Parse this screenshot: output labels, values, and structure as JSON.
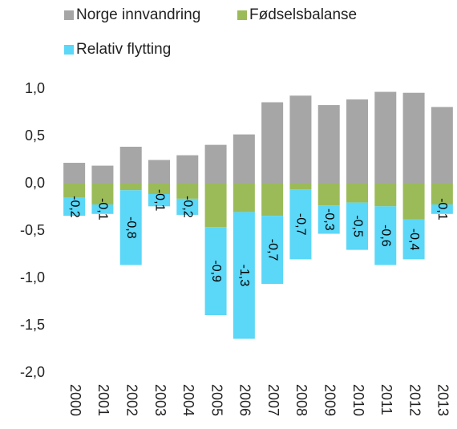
{
  "chart_data": {
    "type": "bar",
    "stacked": true,
    "categories": [
      "2000",
      "2001",
      "2002",
      "2003",
      "2004",
      "2005",
      "2006",
      "2007",
      "2008",
      "2009",
      "2010",
      "2011",
      "2012",
      "2013"
    ],
    "series": [
      {
        "name": "Norge innvandring",
        "color": "#a6a6a6",
        "values": [
          0.22,
          0.19,
          0.39,
          0.25,
          0.3,
          0.41,
          0.52,
          0.86,
          0.93,
          0.83,
          0.89,
          0.97,
          0.96,
          0.81
        ]
      },
      {
        "name": "Fødselsbalanse",
        "color": "#9bbb59",
        "values": [
          -0.15,
          -0.22,
          -0.07,
          -0.11,
          -0.16,
          -0.46,
          -0.3,
          -0.34,
          -0.06,
          -0.23,
          -0.2,
          -0.24,
          -0.38,
          -0.22
        ]
      },
      {
        "name": "Relativ flytting",
        "color": "#5bd7f7",
        "values": [
          -0.19,
          -0.1,
          -0.79,
          -0.13,
          -0.17,
          -0.93,
          -1.34,
          -0.72,
          -0.74,
          -0.3,
          -0.5,
          -0.62,
          -0.42,
          -0.1
        ],
        "value_labels": [
          "-0,2",
          "-0,1",
          "-0,8",
          "-0,1",
          "-0,2",
          "-0,9",
          "-1,3",
          "-0,7",
          "-0,7",
          "-0,3",
          "-0,5",
          "-0,6",
          "-0,4",
          "-0,1"
        ]
      }
    ],
    "ylim": [
      -2.0,
      1.0
    ],
    "yticks": [
      {
        "value": -2.0,
        "label": "-2,0"
      },
      {
        "value": -1.5,
        "label": "-1,5"
      },
      {
        "value": -1.0,
        "label": "-1,0"
      },
      {
        "value": -0.5,
        "label": "-0,5"
      },
      {
        "value": 0.0,
        "label": "0,0"
      },
      {
        "value": 0.5,
        "label": "0,5"
      },
      {
        "value": 1.0,
        "label": "1,0"
      }
    ],
    "grid": false
  }
}
